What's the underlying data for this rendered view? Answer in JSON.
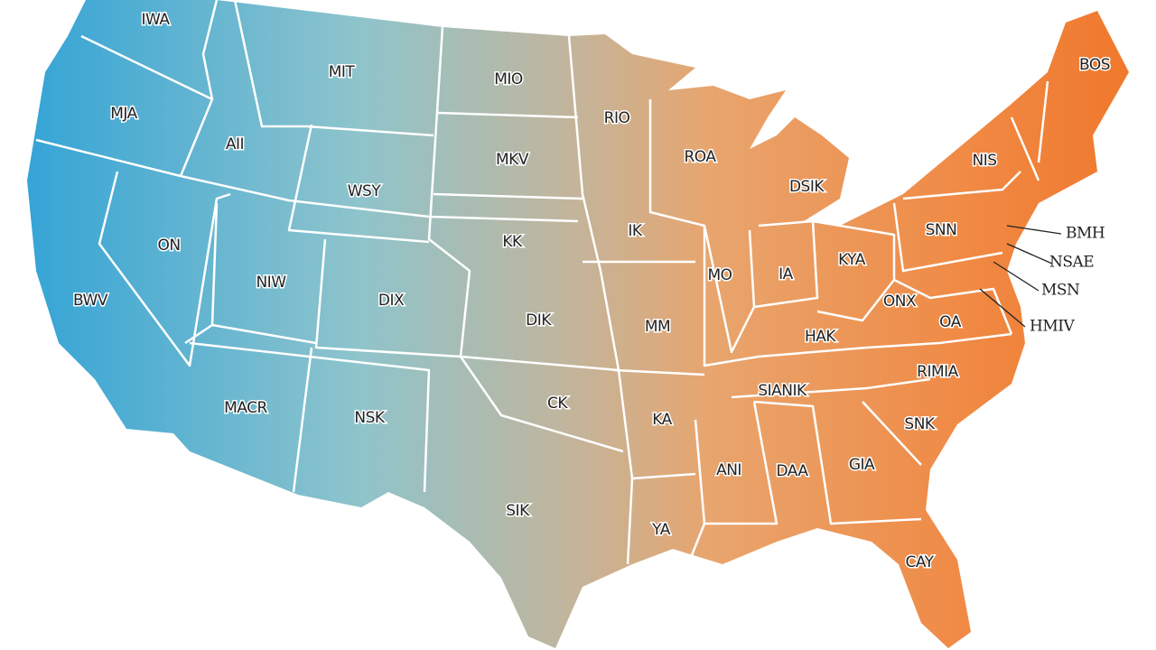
{
  "labels": [
    "IWA",
    "MIT",
    "MIO",
    "MJA",
    "RIO",
    "AII",
    "MKV",
    "ROA",
    "NIS",
    "WSY",
    "DSIK",
    "ON",
    "KK",
    "IK",
    "SNN",
    "BMH",
    "NSAE",
    "NIW",
    "DIX",
    "MO",
    "IA",
    "KYA",
    "MSN",
    "ONX",
    "OA",
    "BWV",
    "DIK",
    "MM",
    "HAK",
    "HMIV",
    "MACR",
    "NSK",
    "CK",
    "KA",
    "SIANIK",
    "RIMIA",
    "SNK",
    "ANI",
    "DAA",
    "GIA",
    "SIK",
    "YA",
    "CAY",
    "BOS"
  ]
}
